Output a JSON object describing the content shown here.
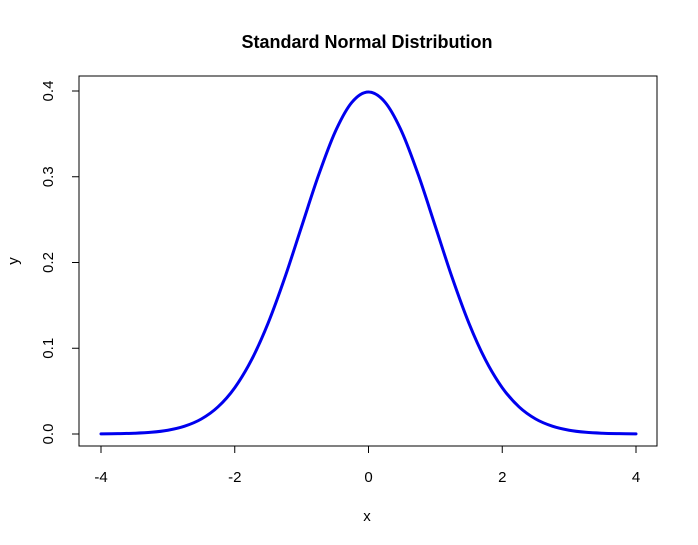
{
  "chart_data": {
    "type": "line",
    "title": "Standard Normal Distribution",
    "xlabel": "x",
    "ylabel": "y",
    "xlim": [
      -4,
      4
    ],
    "ylim": [
      0,
      0.4
    ],
    "x_ticks": [
      -4,
      -2,
      0,
      2,
      4
    ],
    "x_tick_labels": [
      "-4",
      "-2",
      "0",
      "2",
      "4"
    ],
    "y_ticks": [
      0.0,
      0.1,
      0.2,
      0.3,
      0.4
    ],
    "y_tick_labels": [
      "0.0",
      "0.1",
      "0.2",
      "0.3",
      "0.4"
    ],
    "grid": false,
    "legend": "none",
    "series": [
      {
        "color": "#0000ee",
        "x": [
          -4.0,
          -3.75,
          -3.5,
          -3.25,
          -3.0,
          -2.75,
          -2.5,
          -2.25,
          -2.0,
          -1.75,
          -1.5,
          -1.25,
          -1.0,
          -0.75,
          -0.5,
          -0.25,
          0.0,
          0.25,
          0.5,
          0.75,
          1.0,
          1.25,
          1.5,
          1.75,
          2.0,
          2.25,
          2.5,
          2.75,
          3.0,
          3.25,
          3.5,
          3.75,
          4.0
        ],
        "y": [
          0.0001,
          0.0004,
          0.0009,
          0.002,
          0.0044,
          0.0091,
          0.0175,
          0.0317,
          0.054,
          0.0863,
          0.1295,
          0.1826,
          0.242,
          0.3011,
          0.3521,
          0.3867,
          0.3989,
          0.3867,
          0.3521,
          0.3011,
          0.242,
          0.1826,
          0.1295,
          0.0863,
          0.054,
          0.0317,
          0.0175,
          0.0091,
          0.0044,
          0.002,
          0.0009,
          0.0004,
          0.0001
        ]
      }
    ]
  }
}
